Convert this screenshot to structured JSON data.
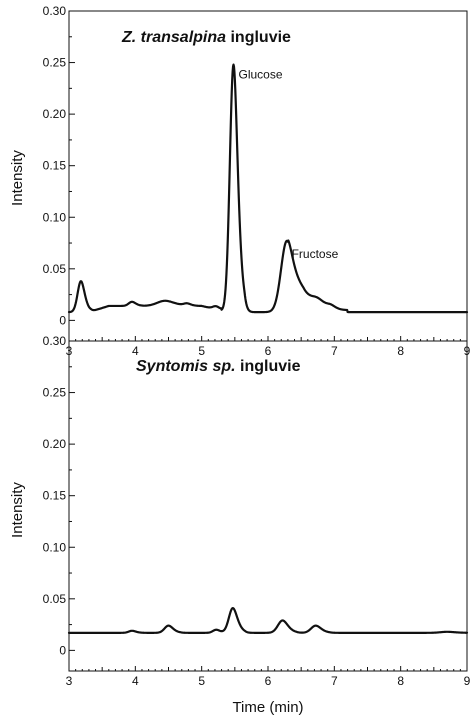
{
  "chart_data": [
    {
      "type": "line",
      "title_italic": "Z. transalpina",
      "title_rest": " ingluvie",
      "xlabel": "",
      "ylabel": "Intensity",
      "xlim": [
        3,
        9
      ],
      "ylim": [
        -0.02,
        0.3
      ],
      "x_ticks": [
        "3",
        "4",
        "5",
        "6",
        "7",
        "8",
        "9"
      ],
      "y_ticks": [
        "0",
        "0.05",
        "0.10",
        "0.15",
        "0.20",
        "0.25",
        "0.30"
      ],
      "y_tick_values": [
        0,
        0.05,
        0.1,
        0.15,
        0.2,
        0.25,
        0.3
      ],
      "baseline": 0.008,
      "peaks": [
        {
          "center": 3.18,
          "height": 0.03,
          "width": 0.05
        },
        {
          "center": 3.95,
          "height": 0.004,
          "width": 0.05
        },
        {
          "center": 4.45,
          "height": 0.005,
          "width": 0.12
        },
        {
          "center": 4.78,
          "height": 0.002,
          "width": 0.05
        },
        {
          "center": 5.22,
          "height": 0.003,
          "width": 0.05
        },
        {
          "center": 5.48,
          "height": 0.24,
          "width": 0.055
        },
        {
          "center": 6.28,
          "height": 0.066,
          "width": 0.085
        },
        {
          "center": 6.5,
          "height": 0.016,
          "width": 0.12
        },
        {
          "center": 6.75,
          "height": 0.008,
          "width": 0.1
        },
        {
          "center": 6.95,
          "height": 0.003,
          "width": 0.06
        }
      ],
      "annotations": [
        {
          "label": "Glucose",
          "x": 5.48,
          "y": 0.248
        },
        {
          "label": "Fructose",
          "x": 6.28,
          "y": 0.074
        }
      ]
    },
    {
      "type": "line",
      "title_italic": "Syntomis sp.",
      "title_rest": " ingluvie",
      "xlabel": "Time (min)",
      "ylabel": "Intensity",
      "xlim": [
        3,
        9
      ],
      "ylim": [
        -0.02,
        0.3
      ],
      "x_ticks": [
        "3",
        "4",
        "5",
        "6",
        "7",
        "8",
        "9"
      ],
      "y_ticks": [
        "0",
        "0.05",
        "0.10",
        "0.15",
        "0.20",
        "0.25",
        "0.30"
      ],
      "y_tick_values": [
        0,
        0.05,
        0.1,
        0.15,
        0.2,
        0.25,
        0.3
      ],
      "baseline": 0.017,
      "peaks": [
        {
          "center": 3.95,
          "height": 0.002,
          "width": 0.05
        },
        {
          "center": 4.5,
          "height": 0.007,
          "width": 0.06
        },
        {
          "center": 5.22,
          "height": 0.003,
          "width": 0.05
        },
        {
          "center": 5.47,
          "height": 0.024,
          "width": 0.06
        },
        {
          "center": 6.22,
          "height": 0.012,
          "width": 0.07
        },
        {
          "center": 6.72,
          "height": 0.007,
          "width": 0.07
        },
        {
          "center": 8.7,
          "height": 0.001,
          "width": 0.1
        }
      ],
      "annotations": []
    }
  ]
}
